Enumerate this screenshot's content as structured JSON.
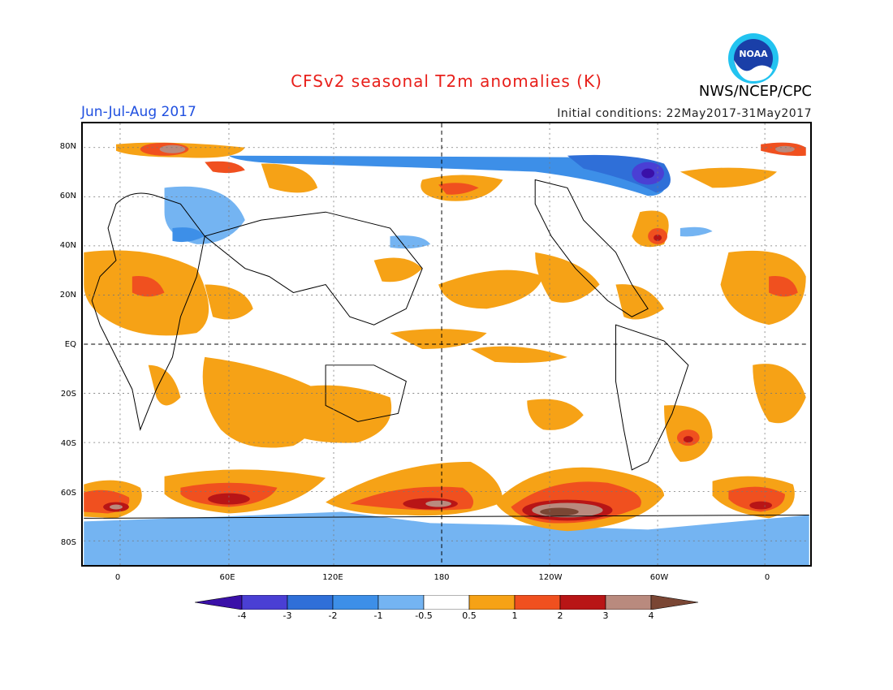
{
  "header": {
    "title": "CFSv2 seasonal T2m anomalies (K)",
    "period": "Jun-Jul-Aug 2017",
    "initial_conditions": "Initial conditions: 22May2017-31May2017",
    "agency": "NWS/NCEP/CPC",
    "logo_text": "NOAA"
  },
  "map": {
    "projection": "cylindrical equidistant",
    "lon_range": [
      -20,
      380
    ],
    "lat_range": [
      -90,
      90
    ],
    "grid": true,
    "lat_labels": [
      "80N",
      "60N",
      "40N",
      "20N",
      "EQ",
      "20S",
      "40S",
      "60S",
      "80S"
    ],
    "lon_labels": [
      "0",
      "60E",
      "120E",
      "180",
      "120W",
      "60W",
      "0"
    ],
    "center_lines": [
      "EQ",
      "180"
    ]
  },
  "colorbar": {
    "labels": [
      "-4",
      "-3",
      "-2",
      "-1",
      "-0.5",
      "0.5",
      "1",
      "2",
      "3",
      "4"
    ],
    "colors": [
      "#3a10a8",
      "#4a3fd4",
      "#2f6fd8",
      "#3d8fe8",
      "#74b4f2",
      "#ffffff",
      "#f6a216",
      "#f0501f",
      "#b81516",
      "#b98a7e",
      "#7a4634"
    ]
  }
}
